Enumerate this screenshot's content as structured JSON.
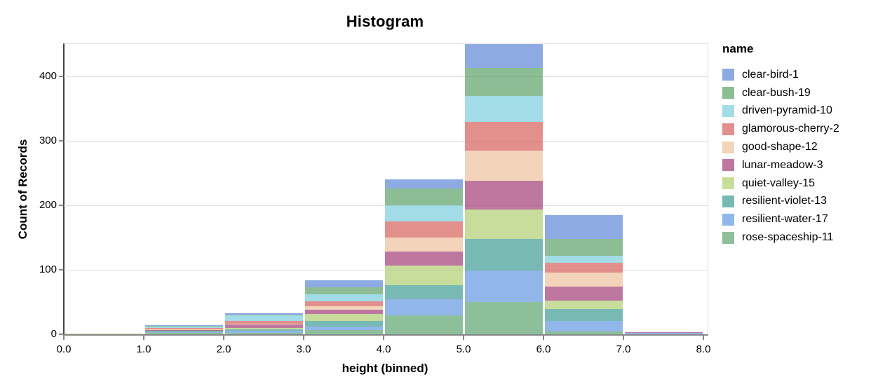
{
  "title": "Histogram",
  "legend": {
    "title": "name"
  },
  "chart_data": {
    "type": "bar",
    "stacked": true,
    "title": "Histogram",
    "xlabel": "height (binned)",
    "ylabel": "Count of Records",
    "bin_edges": [
      0,
      1,
      2,
      3,
      4,
      5,
      6,
      7,
      8
    ],
    "x_tick_labels": [
      "0.0",
      "1.0",
      "2.0",
      "3.0",
      "4.0",
      "5.0",
      "6.0",
      "7.0",
      "8.0"
    ],
    "y_ticks": [
      0,
      100,
      200,
      300,
      400
    ],
    "ylim": [
      0,
      450
    ],
    "grid": true,
    "legend_position": "right",
    "bar_opacity": 0.72,
    "bin_totals": [
      1,
      14,
      33,
      84,
      240,
      450,
      185,
      3
    ],
    "series": [
      {
        "name": "clear-bird-1",
        "color": "#6389d8",
        "values": [
          0,
          1,
          3,
          11,
          14,
          37,
          37,
          0
        ]
      },
      {
        "name": "clear-bush-19",
        "color": "#60a36c",
        "values": [
          0,
          1,
          1,
          11,
          26,
          43,
          26,
          0
        ]
      },
      {
        "name": "driven-pyramid-10",
        "color": "#7ecede",
        "values": [
          0,
          2,
          8,
          11,
          25,
          41,
          11,
          0
        ]
      },
      {
        "name": "glamorous-cherry-2",
        "color": "#d8645f",
        "values": [
          0,
          2,
          5,
          7,
          25,
          44,
          15,
          0
        ]
      },
      {
        "name": "good-shape-12",
        "color": "#eec3a1",
        "values": [
          0,
          1,
          1,
          6,
          22,
          47,
          22,
          0
        ]
      },
      {
        "name": "lunar-meadow-3",
        "color": "#a5447c",
        "values": [
          0,
          1,
          5,
          6,
          22,
          45,
          22,
          1
        ]
      },
      {
        "name": "quiet-valley-15",
        "color": "#b3ce76",
        "values": [
          1,
          1,
          2,
          11,
          30,
          45,
          13,
          0
        ]
      },
      {
        "name": "resilient-violet-13",
        "color": "#449f95",
        "values": [
          0,
          2,
          3,
          9,
          22,
          49,
          18,
          0
        ]
      },
      {
        "name": "resilient-water-17",
        "color": "#669ae1",
        "values": [
          0,
          1,
          3,
          6,
          25,
          49,
          17,
          2
        ]
      },
      {
        "name": "rose-spaceship-11",
        "color": "#63a674",
        "values": [
          0,
          2,
          2,
          6,
          29,
          50,
          4,
          0
        ]
      }
    ],
    "stack_order_bottom_to_top": "reverse of legend order (rose-spaceship-11 at bottom, clear-bird-1 on top)"
  }
}
